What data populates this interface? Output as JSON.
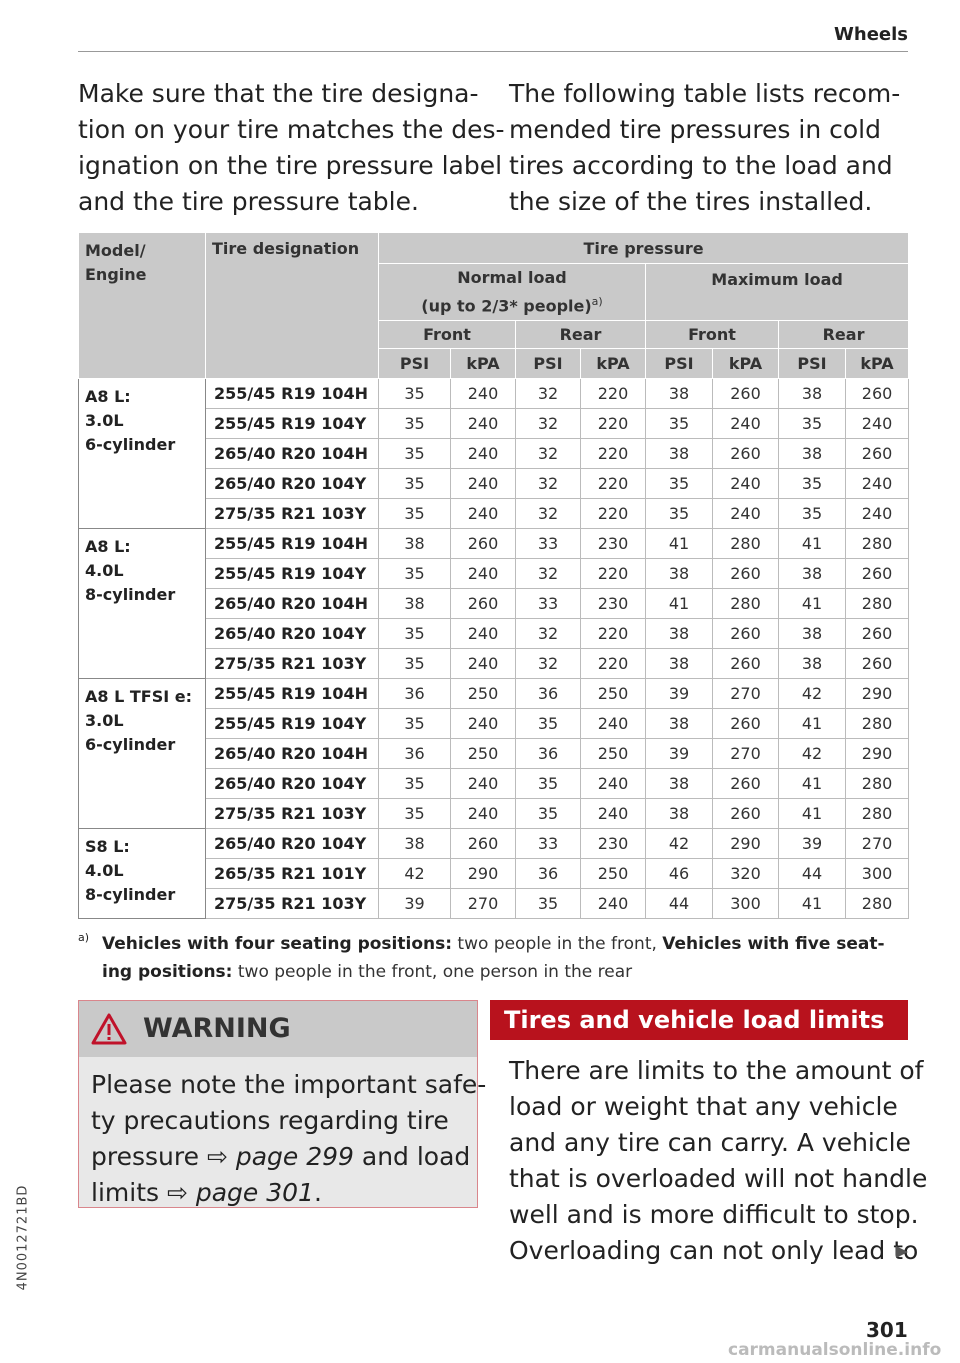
{
  "header": {
    "section": "Wheels"
  },
  "intro": {
    "left": [
      "Make sure that the tire designa-",
      "tion on your tire matches the des-",
      "ignation on the tire pressure label",
      "and the tire pressure table."
    ],
    "right": [
      "The following table lists recom-",
      "mended tire pressures in cold",
      "tires according to the load and",
      "the size of the tires installed."
    ]
  },
  "table": {
    "head": {
      "model": "Model/ Engine",
      "tire": "Tire designation",
      "pressure": "Tire pressure",
      "normal": "Normal load",
      "normal_note": "(up to 2/3* people)",
      "normal_ref": "a)",
      "maximum": "Maximum load",
      "axles": [
        "Front",
        "Rear",
        "Front",
        "Rear"
      ],
      "units": [
        "PSI",
        "kPA",
        "PSI",
        "kPA",
        "PSI",
        "kPA",
        "PSI",
        "kPA"
      ]
    },
    "groups": [
      {
        "model": [
          "A8 L:",
          "3.0L",
          "6-cylinder"
        ],
        "rows": [
          {
            "tire": "255/45 R19 104H",
            "values": [
              35,
              240,
              32,
              220,
              38,
              260,
              38,
              260
            ]
          },
          {
            "tire": "255/45 R19 104Y",
            "values": [
              35,
              240,
              32,
              220,
              35,
              240,
              35,
              240
            ]
          },
          {
            "tire": "265/40 R20 104H",
            "values": [
              35,
              240,
              32,
              220,
              38,
              260,
              38,
              260
            ]
          },
          {
            "tire": "265/40 R20 104Y",
            "values": [
              35,
              240,
              32,
              220,
              35,
              240,
              35,
              240
            ]
          },
          {
            "tire": "275/35 R21 103Y",
            "values": [
              35,
              240,
              32,
              220,
              35,
              240,
              35,
              240
            ]
          }
        ]
      },
      {
        "model": [
          "A8 L:",
          "4.0L",
          "8-cylinder"
        ],
        "rows": [
          {
            "tire": "255/45 R19 104H",
            "values": [
              38,
              260,
              33,
              230,
              41,
              280,
              41,
              280
            ]
          },
          {
            "tire": "255/45 R19 104Y",
            "values": [
              35,
              240,
              32,
              220,
              38,
              260,
              38,
              260
            ]
          },
          {
            "tire": "265/40 R20 104H",
            "values": [
              38,
              260,
              33,
              230,
              41,
              280,
              41,
              280
            ]
          },
          {
            "tire": "265/40 R20 104Y",
            "values": [
              35,
              240,
              32,
              220,
              38,
              260,
              38,
              260
            ]
          },
          {
            "tire": "275/35 R21 103Y",
            "values": [
              35,
              240,
              32,
              220,
              38,
              260,
              38,
              260
            ]
          }
        ]
      },
      {
        "model": [
          "A8 L TFSI e:",
          "3.0L",
          "6-cylinder"
        ],
        "rows": [
          {
            "tire": "255/45 R19 104H",
            "values": [
              36,
              250,
              36,
              250,
              39,
              270,
              42,
              290
            ]
          },
          {
            "tire": "255/45 R19 104Y",
            "values": [
              35,
              240,
              35,
              240,
              38,
              260,
              41,
              280
            ]
          },
          {
            "tire": "265/40 R20 104H",
            "values": [
              36,
              250,
              36,
              250,
              39,
              270,
              42,
              290
            ]
          },
          {
            "tire": "265/40 R20 104Y",
            "values": [
              35,
              240,
              35,
              240,
              38,
              260,
              41,
              280
            ]
          },
          {
            "tire": "275/35 R21 103Y",
            "values": [
              35,
              240,
              35,
              240,
              38,
              260,
              41,
              280
            ]
          }
        ]
      },
      {
        "model": [
          "S8 L:",
          "4.0L",
          "8-cylinder"
        ],
        "rows": [
          {
            "tire": "265/40 R20 104Y",
            "values": [
              38,
              260,
              33,
              230,
              42,
              290,
              39,
              270
            ]
          },
          {
            "tire": "265/35 R21 101Y",
            "values": [
              42,
              290,
              36,
              250,
              46,
              320,
              44,
              300
            ]
          },
          {
            "tire": "275/35 R21 103Y",
            "values": [
              39,
              270,
              35,
              240,
              44,
              300,
              41,
              280
            ]
          }
        ]
      }
    ]
  },
  "footnote": {
    "marker": "a)",
    "lines": [
      [
        {
          "text": "Vehicles with four seating positions:",
          "bold": true
        },
        {
          "text": " two people in the front, ",
          "bold": false
        },
        {
          "text": "Vehicles with five seat-",
          "bold": true
        }
      ],
      [
        {
          "text": "ing positions:",
          "bold": true
        },
        {
          "text": " two people in the front, one person in the rear",
          "bold": false
        }
      ]
    ]
  },
  "warning": {
    "title": "WARNING",
    "lines": [
      [
        {
          "text": "Please note the important safe-",
          "link": false
        }
      ],
      [
        {
          "text": "ty precautions regarding tire",
          "link": false
        }
      ],
      [
        {
          "text": "pressure ",
          "link": false
        },
        {
          "text": "⇨ page 299",
          "link": true
        },
        {
          "text": " and load",
          "link": false
        }
      ],
      [
        {
          "text": "limits ",
          "link": false
        },
        {
          "text": "⇨ page 301",
          "link": true
        },
        {
          "text": ".",
          "link": false
        }
      ]
    ]
  },
  "section": {
    "title": "Tires and vehicle load limits",
    "lines": [
      "There are limits to the amount of",
      "load or weight that any vehicle",
      "and any tire can carry. A vehicle",
      "that is overloaded will not handle",
      "well and is more difficult to stop.",
      "Overloading can not only lead to"
    ]
  },
  "footer": {
    "code": "4N0012721BD",
    "page": "301",
    "watermark": "carmanualsonline.info"
  }
}
